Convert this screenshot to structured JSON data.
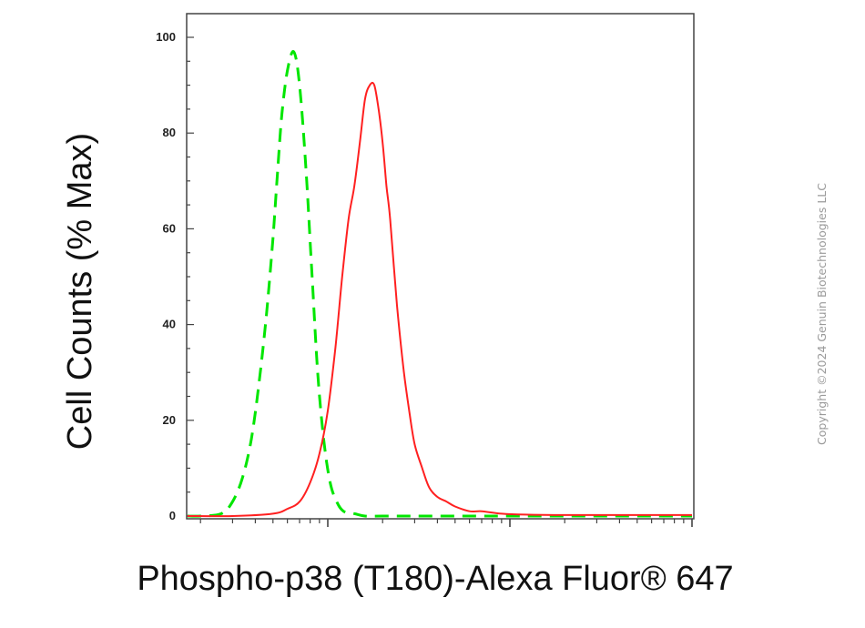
{
  "chart_data": {
    "type": "line",
    "title": "",
    "xlabel": "Phospho-p38 (T180)-Alexa Fluor® 647",
    "ylabel": "Cell Counts (% Max)",
    "x_scale": "log",
    "xlim": [
      1,
      1000
    ],
    "ylim": [
      0,
      105
    ],
    "y_ticks": [
      "0",
      "20",
      "40",
      "60",
      "80",
      "100"
    ],
    "grid": false,
    "legend": "none",
    "series": [
      {
        "color": "#00e600",
        "style": "dashed",
        "x": [
          1.4,
          2.0,
          2.6,
          3.0,
          3.4,
          3.8,
          4.2,
          4.6,
          5.0,
          5.3,
          5.6,
          6.0,
          6.5,
          7.0,
          7.6,
          8.2,
          8.8,
          9.5,
          10.3,
          11.2,
          12.2,
          14,
          16,
          20,
          30,
          60,
          100,
          200,
          1000
        ],
        "y": [
          0,
          0,
          0.5,
          3,
          8,
          16,
          28,
          42,
          58,
          72,
          84,
          93,
          97,
          90,
          72,
          50,
          30,
          16,
          7,
          3,
          1,
          0.5,
          0,
          0,
          0,
          0,
          0,
          0,
          0
        ]
      },
      {
        "color": "#ff2020",
        "style": "solid",
        "x": [
          1.4,
          3,
          5,
          6,
          7,
          8,
          9,
          10,
          11,
          12,
          13,
          14,
          15,
          16,
          17,
          18,
          19,
          20,
          21,
          22,
          24,
          26,
          28,
          30,
          33,
          36,
          40,
          45,
          50,
          60,
          70,
          90,
          120,
          200,
          500,
          1000
        ],
        "y": [
          0,
          0,
          0.5,
          1.5,
          3,
          7,
          13,
          22,
          35,
          50,
          62,
          69,
          78,
          87,
          90,
          90,
          85,
          78,
          69,
          62,
          44,
          31,
          22,
          15,
          10,
          6,
          4,
          3,
          2,
          1,
          1,
          0.5,
          0.3,
          0.2,
          0.2,
          0.2
        ]
      }
    ]
  },
  "watermark": {
    "copyright": "Copyright ©2024 Genuin Biotechnologies LLC"
  }
}
